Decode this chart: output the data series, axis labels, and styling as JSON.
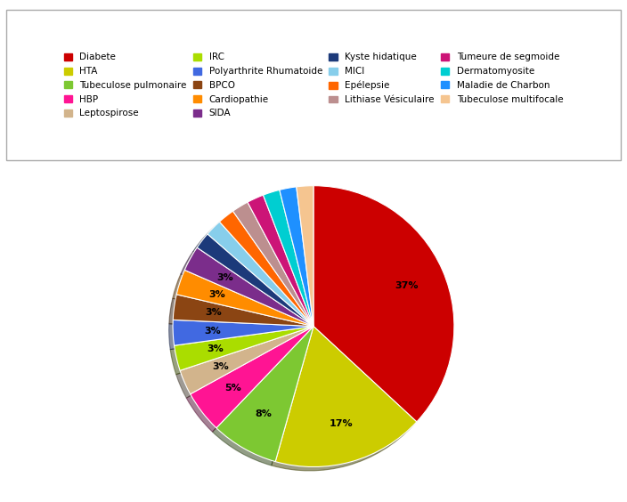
{
  "labels": [
    "Diabete",
    "HTA",
    "Tubeculose pulmonaire",
    "HBP",
    "Leptospirose",
    "IRC",
    "Polyarthrite Rhumatoide",
    "BPCO",
    "Cardiopathie",
    "SIDA",
    "Kyste hidatique",
    "MICI",
    "Epélepsie",
    "Lithiase Vésiculaire",
    "Tumeure de segmoide",
    "Dermatomyosite",
    "Maladie de Charbon",
    "Tubeculose multifocale"
  ],
  "values": [
    38,
    18,
    8,
    5,
    3,
    3,
    3,
    3,
    3,
    3,
    2,
    2,
    2,
    2,
    2,
    2,
    2,
    2
  ],
  "colors": [
    "#CC0000",
    "#CCCC00",
    "#7DC832",
    "#FF1493",
    "#D2B48C",
    "#AADD00",
    "#4169E1",
    "#8B4513",
    "#FF8C00",
    "#7B2D8B",
    "#1C3A7A",
    "#87CEEB",
    "#FF6600",
    "#BC8F8F",
    "#CC1477",
    "#00CED1",
    "#1E90FF",
    "#F5C590"
  ],
  "legend_order": [
    "Diabete",
    "HTA",
    "Tubeculose pulmonaire",
    "HBP",
    "Leptospirose",
    "IRC",
    "Polyarthrite Rhumatoide",
    "BPCO",
    "Cardiopathie",
    "SIDA",
    "Kyste hidatique",
    "MICI",
    "Epélepsie",
    "Lithiase Vésiculaire",
    "Tumeure de segmoide",
    "Dermatomyosite",
    "Maladie de Charbon",
    "Tubeculose multifocale"
  ],
  "startangle": 90,
  "pct_fontsize": 8,
  "legend_fontsize": 7.5,
  "legend_ncol": 4
}
